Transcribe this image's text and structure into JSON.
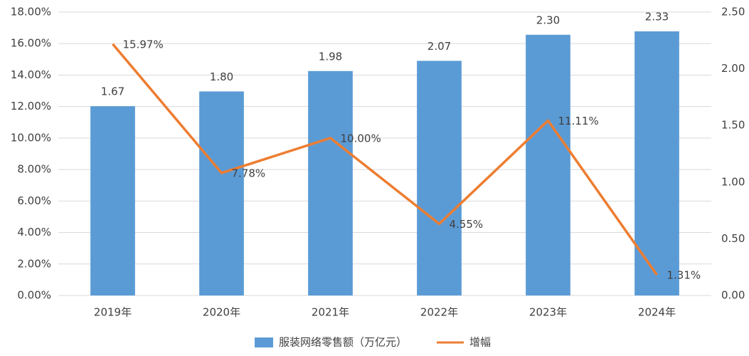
{
  "chart_data": {
    "type": "combo",
    "categories": [
      "2019年",
      "2020年",
      "2021年",
      "2022年",
      "2023年",
      "2024年"
    ],
    "series": [
      {
        "name": "服装网络零售额（万亿元）",
        "type": "bar",
        "axis": "y2",
        "color": "#5b9bd5",
        "values": [
          1.67,
          1.8,
          1.98,
          2.07,
          2.3,
          2.33
        ],
        "value_labels": [
          "1.67",
          "1.80",
          "1.98",
          "2.07",
          "2.30",
          "2.33"
        ]
      },
      {
        "name": "增幅",
        "type": "line",
        "color": "#ed7d31",
        "values": [
          15.97,
          7.78,
          10,
          4.55,
          11.11,
          1.31
        ],
        "value_labels": [
          "15.97%",
          "7.78%",
          "10.00%",
          "4.55%",
          "11.11%",
          "1.31%"
        ]
      }
    ],
    "ylim": [
      0,
      18
    ],
    "yticks": [
      {
        "value": 0,
        "label": "0.00%"
      },
      {
        "value": 2,
        "label": "2.00%"
      },
      {
        "value": 4,
        "label": "4.00%"
      },
      {
        "value": 6,
        "label": "6.00%"
      },
      {
        "value": 8,
        "label": "8.00%"
      },
      {
        "value": 10,
        "label": "10.00%"
      },
      {
        "value": 12,
        "label": "12.00%"
      },
      {
        "value": 14,
        "label": "14.00%"
      },
      {
        "value": 16,
        "label": "16.00%"
      },
      {
        "value": 18,
        "label": "18.00%"
      }
    ],
    "y2lim": [
      0,
      2.5
    ],
    "y2ticks": [
      {
        "value": 0,
        "label": "0.00"
      },
      {
        "value": 0.5,
        "label": "0.50"
      },
      {
        "value": 1,
        "label": "1.00"
      },
      {
        "value": 1.5,
        "label": "1.50"
      },
      {
        "value": 2,
        "label": "2.00"
      },
      {
        "value": 2.5,
        "label": "2.50"
      }
    ],
    "grid": true,
    "legend": "bottom"
  }
}
